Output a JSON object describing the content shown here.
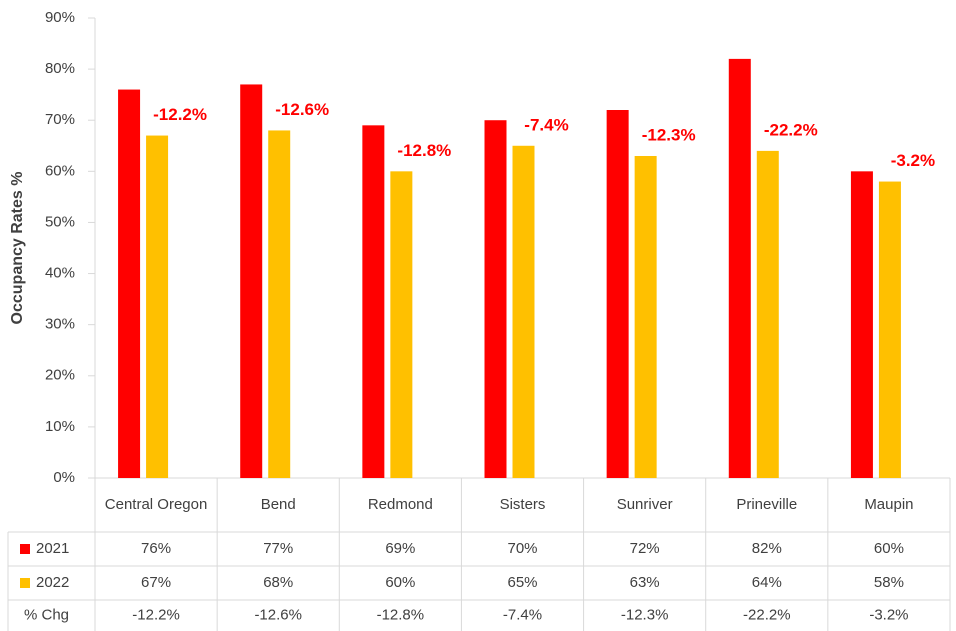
{
  "chart_data": {
    "type": "bar",
    "y_label": "Occupancy Rates %",
    "categories": [
      "Central Oregon",
      "Bend",
      "Redmond",
      "Sisters",
      "Sunriver",
      "Prineville",
      "Maupin"
    ],
    "series": [
      {
        "name": "2021",
        "color": "#ff0000",
        "values": [
          76,
          77,
          69,
          70,
          72,
          82,
          60
        ],
        "value_labels": [
          "76%",
          "77%",
          "69%",
          "70%",
          "72%",
          "82%",
          "60%"
        ]
      },
      {
        "name": "2022",
        "color": "#ffc000",
        "values": [
          67,
          68,
          60,
          65,
          63,
          64,
          58
        ],
        "value_labels": [
          "67%",
          "68%",
          "60%",
          "65%",
          "63%",
          "64%",
          "58%"
        ]
      }
    ],
    "change": {
      "name": "% Chg",
      "color": "#ff0000",
      "values": [
        -12.2,
        -12.6,
        -12.8,
        -7.4,
        -12.3,
        -22.2,
        -3.2
      ],
      "value_labels": [
        "-12.2%",
        "-12.6%",
        "-12.8%",
        "-7.4%",
        "-12.3%",
        "-22.2%",
        "-3.2%"
      ]
    },
    "ylim": [
      0,
      90
    ],
    "yticks": [
      {
        "value": 0,
        "label": "0%"
      },
      {
        "value": 10,
        "label": "10%"
      },
      {
        "value": 20,
        "label": "20%"
      },
      {
        "value": 30,
        "label": "30%"
      },
      {
        "value": 40,
        "label": "40%"
      },
      {
        "value": 50,
        "label": "50%"
      },
      {
        "value": 60,
        "label": "60%"
      },
      {
        "value": 70,
        "label": "70%"
      },
      {
        "value": 80,
        "label": "80%"
      },
      {
        "value": 90,
        "label": "90%"
      }
    ],
    "grid": false
  }
}
